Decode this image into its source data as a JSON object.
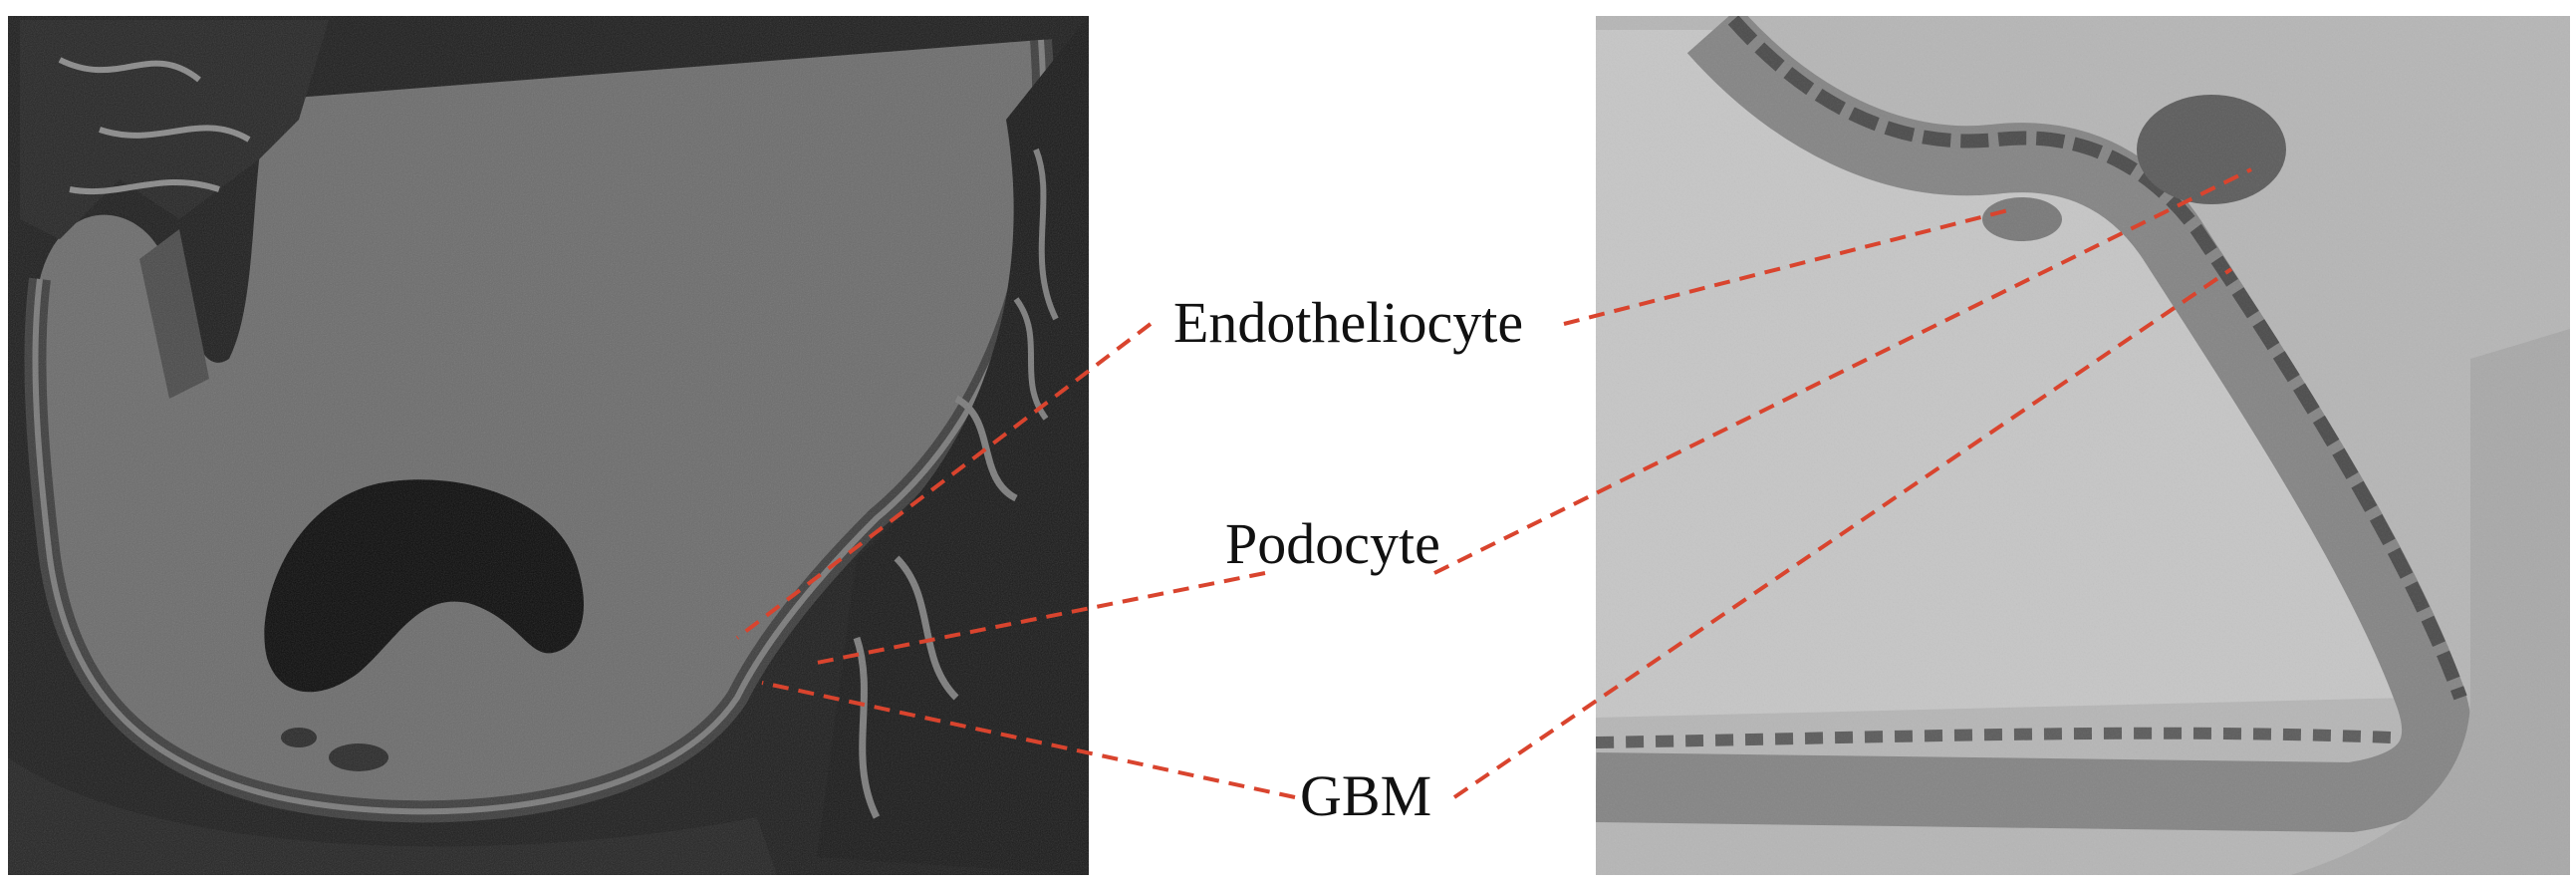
{
  "labels": {
    "endotheliocyte": "Endotheliocyte",
    "podocyte": "Podocyte",
    "gbm": "GBM"
  },
  "colors": {
    "leader_line": "#d9442e",
    "label_text": "#111111",
    "left_panel_bg": "#5a5a5a",
    "right_panel_bg": "#b9b9b9"
  }
}
